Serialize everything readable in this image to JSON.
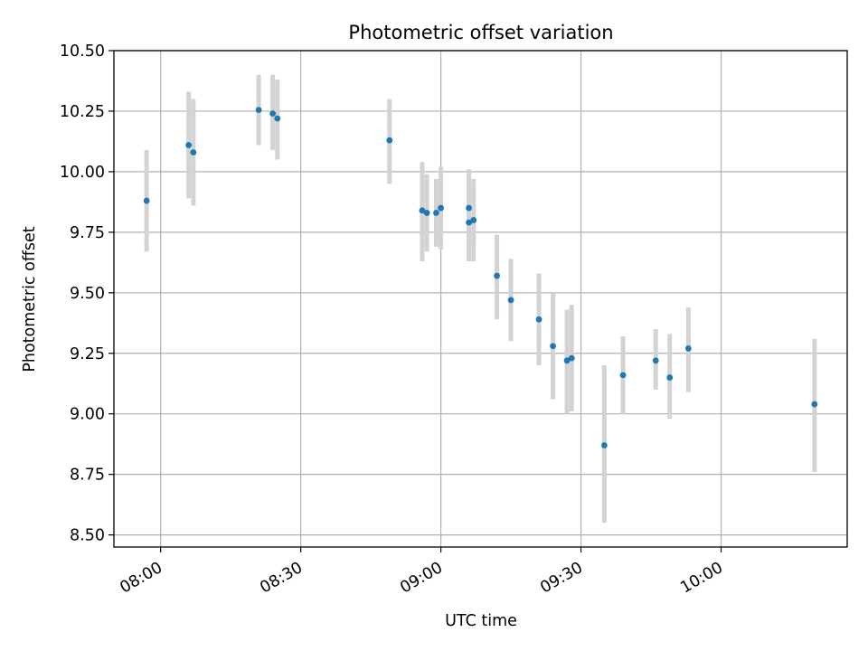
{
  "chart_data": {
    "type": "scatter",
    "title": "Photometric offset variation",
    "xlabel": "UTC time",
    "ylabel": "Photometric offset",
    "xlim": [
      "07:50",
      "10:27"
    ],
    "ylim": [
      8.45,
      10.5
    ],
    "xticks": [
      "08:00",
      "08:30",
      "09:00",
      "09:30",
      "10:00"
    ],
    "yticks": [
      "8.50",
      "8.75",
      "9.00",
      "9.25",
      "9.50",
      "9.75",
      "10.00",
      "10.25",
      "10.50"
    ],
    "grid": true,
    "colors": {
      "point": "#1f77b4",
      "errorbar": "#d3d3d3",
      "grid": "#b0b0b0"
    },
    "points": [
      {
        "x": "07:57",
        "y": 9.88,
        "ymin": 9.67,
        "ymax": 10.09
      },
      {
        "x": "08:06",
        "y": 10.11,
        "ymin": 9.89,
        "ymax": 10.33
      },
      {
        "x": "08:07",
        "y": 10.08,
        "ymin": 9.86,
        "ymax": 10.3
      },
      {
        "x": "08:21",
        "y": 10.255,
        "ymin": 10.11,
        "ymax": 10.4
      },
      {
        "x": "08:24",
        "y": 10.24,
        "ymin": 10.09,
        "ymax": 10.4
      },
      {
        "x": "08:25",
        "y": 10.22,
        "ymin": 10.05,
        "ymax": 10.38
      },
      {
        "x": "08:49",
        "y": 10.13,
        "ymin": 9.95,
        "ymax": 10.3
      },
      {
        "x": "08:56",
        "y": 9.84,
        "ymin": 9.63,
        "ymax": 10.04
      },
      {
        "x": "08:57",
        "y": 9.83,
        "ymin": 9.67,
        "ymax": 9.99
      },
      {
        "x": "08:59",
        "y": 9.83,
        "ymin": 9.69,
        "ymax": 9.97
      },
      {
        "x": "09:00",
        "y": 9.85,
        "ymin": 9.68,
        "ymax": 10.02
      },
      {
        "x": "09:06",
        "y": 9.79,
        "ymin": 9.63,
        "ymax": 9.96
      },
      {
        "x": "09:06",
        "y": 9.85,
        "ymin": 9.69,
        "ymax": 10.01
      },
      {
        "x": "09:07",
        "y": 9.8,
        "ymin": 9.63,
        "ymax": 9.97
      },
      {
        "x": "09:12",
        "y": 9.57,
        "ymin": 9.39,
        "ymax": 9.74
      },
      {
        "x": "09:15",
        "y": 9.47,
        "ymin": 9.3,
        "ymax": 9.64
      },
      {
        "x": "09:21",
        "y": 9.39,
        "ymin": 9.2,
        "ymax": 9.58
      },
      {
        "x": "09:24",
        "y": 9.28,
        "ymin": 9.06,
        "ymax": 9.5
      },
      {
        "x": "09:27",
        "y": 9.22,
        "ymin": 9.0,
        "ymax": 9.43
      },
      {
        "x": "09:28",
        "y": 9.23,
        "ymin": 9.01,
        "ymax": 9.45
      },
      {
        "x": "09:35",
        "y": 8.87,
        "ymin": 8.55,
        "ymax": 9.2
      },
      {
        "x": "09:39",
        "y": 9.16,
        "ymin": 9.0,
        "ymax": 9.32
      },
      {
        "x": "09:46",
        "y": 9.22,
        "ymin": 9.1,
        "ymax": 9.35
      },
      {
        "x": "09:49",
        "y": 9.15,
        "ymin": 8.98,
        "ymax": 9.33
      },
      {
        "x": "09:53",
        "y": 9.27,
        "ymin": 9.09,
        "ymax": 9.44
      },
      {
        "x": "10:20",
        "y": 9.04,
        "ymin": 8.76,
        "ymax": 9.31
      }
    ]
  }
}
